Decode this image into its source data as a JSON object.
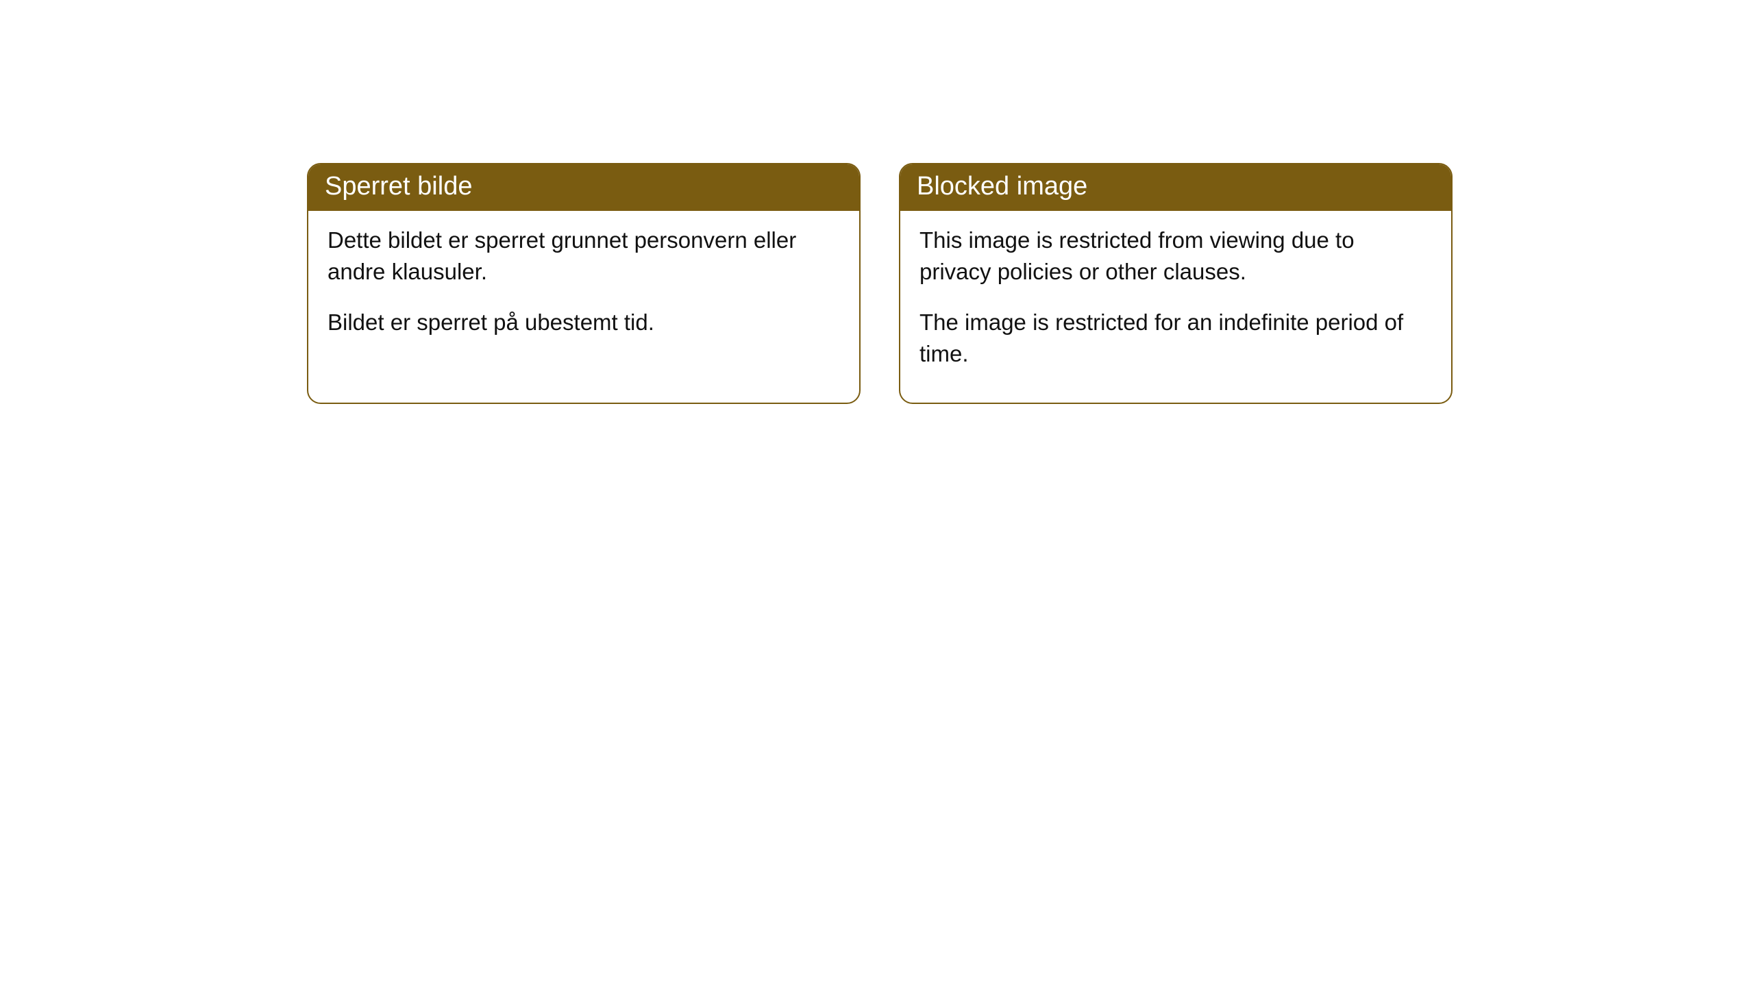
{
  "styling": {
    "header_bg_color": "#7a5c11",
    "header_text_color": "#ffffff",
    "border_color": "#7a5c11",
    "body_bg_color": "#ffffff",
    "body_text_color": "#111111",
    "header_fontsize": 38,
    "body_fontsize": 33,
    "border_radius": 20,
    "border_width": 2
  },
  "cards": [
    {
      "title": "Sperret bilde",
      "paragraphs": [
        "Dette bildet er sperret grunnet personvern eller andre klausuler.",
        "Bildet er sperret på ubestemt tid."
      ]
    },
    {
      "title": "Blocked image",
      "paragraphs": [
        "This image is restricted from viewing due to privacy policies or other clauses.",
        "The image is restricted for an indefinite period of time."
      ]
    }
  ]
}
